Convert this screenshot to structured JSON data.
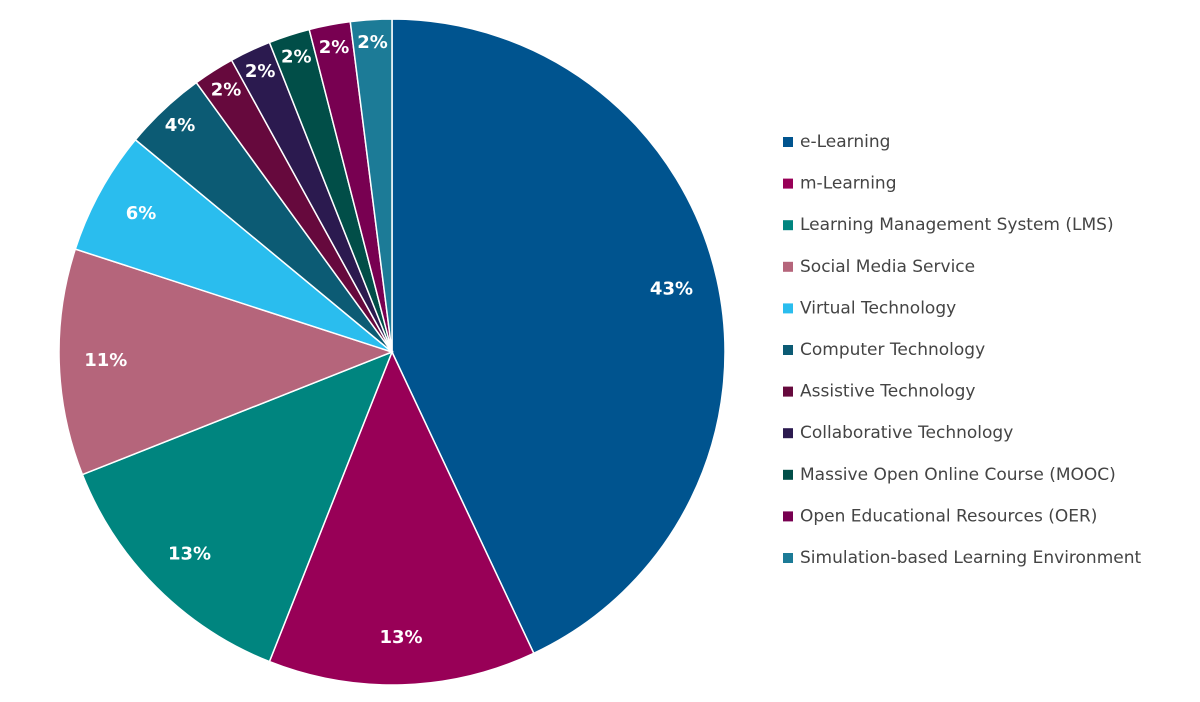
{
  "chart_data": {
    "type": "pie",
    "categories": [
      "e-Learning",
      "m-Learning",
      "Learning Management System (LMS)",
      "Social Media Service",
      "Virtual Technology",
      "Computer Technology",
      "Assistive Technology",
      "Collaborative Technology",
      "Massive Open Online Course (MOOC)",
      "Open Educational Resources (OER)",
      "Simulation-based Learning Environment"
    ],
    "values": [
      43,
      13,
      13,
      11,
      6,
      4,
      2,
      2,
      2,
      2,
      2
    ],
    "value_labels": [
      "43%",
      "13%",
      "13%",
      "11%",
      "6%",
      "4%",
      "2%",
      "2%",
      "2%",
      "2%",
      "2%"
    ],
    "colors": [
      "#00548f",
      "#980057",
      "#00857f",
      "#b5657b",
      "#2abdee",
      "#0c5b74",
      "#66093d",
      "#2b1a4f",
      "#014e48",
      "#780051",
      "#1c7b97"
    ],
    "legend": "right"
  }
}
